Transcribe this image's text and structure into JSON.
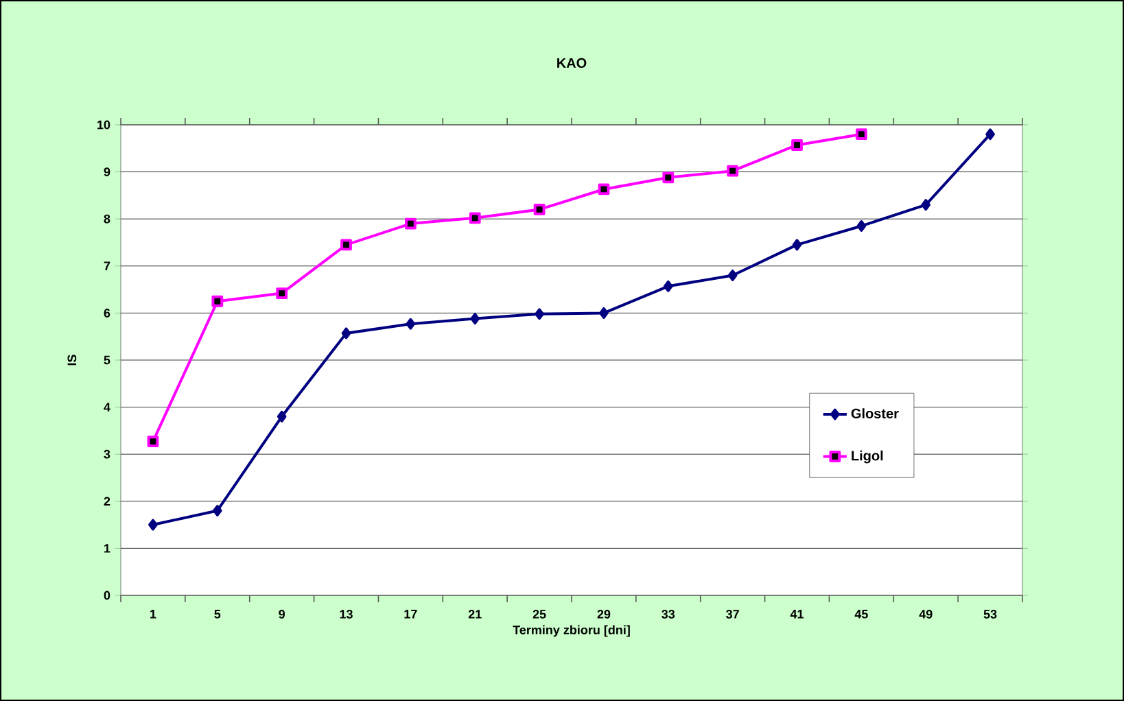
{
  "chart_data": {
    "type": "line",
    "title": "KAO",
    "xlabel": "Terminy zbioru [dni]",
    "ylabel": "IS",
    "categories": [
      "1",
      "5",
      "9",
      "13",
      "17",
      "21",
      "25",
      "29",
      "33",
      "37",
      "41",
      "45",
      "49",
      "53"
    ],
    "series": [
      {
        "name": "Gloster",
        "color": "#000080",
        "marker": "diamond",
        "values": [
          1.5,
          1.8,
          3.8,
          5.57,
          5.77,
          5.88,
          5.98,
          6.0,
          6.57,
          6.8,
          7.45,
          7.85,
          8.3,
          9.8
        ]
      },
      {
        "name": "Ligol",
        "color": "#ff00ff",
        "marker": "square",
        "values": [
          3.27,
          6.25,
          6.42,
          7.45,
          7.9,
          8.02,
          8.2,
          8.63,
          8.88,
          9.02,
          9.57,
          9.8,
          null,
          null
        ]
      }
    ],
    "ylim": [
      0,
      10
    ],
    "yticks": [
      0,
      1,
      2,
      3,
      4,
      5,
      6,
      7,
      8,
      9,
      10
    ],
    "grid": "y",
    "legend": "right",
    "line_style": "solid"
  }
}
